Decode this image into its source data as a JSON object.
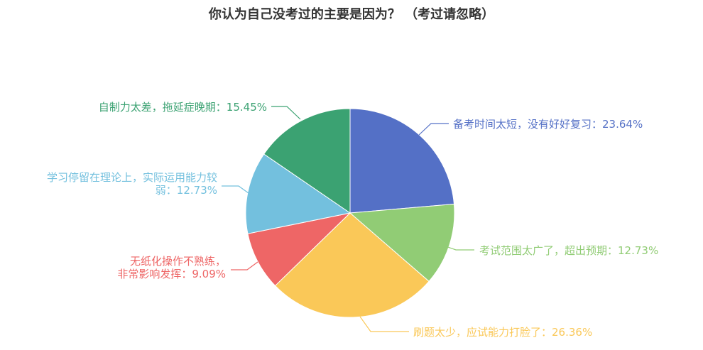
{
  "chart_data": {
    "type": "pie",
    "title": "你认为自己没考过的主要是因为？ （考过请忽略）",
    "legend": "none",
    "slices": [
      {
        "label": "备考时间太短，没有好好复习",
        "value": 23.64,
        "display": "23.64%",
        "color": "#5470c6"
      },
      {
        "label": "考试范围太广了，超出预期",
        "value": 12.73,
        "display": "12.73%",
        "color": "#91cc75"
      },
      {
        "label": "刷题太少，应试能力打脸了",
        "value": 26.36,
        "display": "26.36%",
        "color": "#fac858"
      },
      {
        "label": "无纸化操作不熟练，非常影响发挥",
        "value": 9.09,
        "display": "9.09%",
        "color": "#ee6666"
      },
      {
        "label": "学习停留在理论上，实际运用能力较弱",
        "value": 12.73,
        "display": "12.73%",
        "color": "#73c0de"
      },
      {
        "label": "自制力太差，拖延症晚期",
        "value": 15.45,
        "display": "15.45%",
        "color": "#3ba272"
      }
    ]
  }
}
